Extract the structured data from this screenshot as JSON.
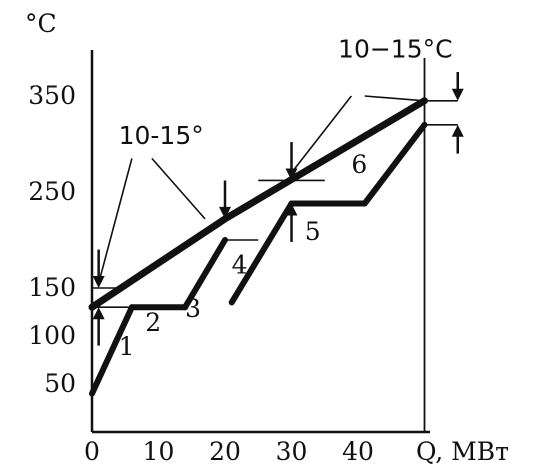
{
  "chart_data": {
    "type": "line",
    "y_unit_label": "°C",
    "x_axis_label": "Q, МВт",
    "x_ticks": [
      "0",
      "10",
      "20",
      "30",
      "40"
    ],
    "x_tick_values": [
      0,
      10,
      20,
      30,
      40
    ],
    "y_ticks": [
      "50",
      "100",
      "150",
      "250",
      "350"
    ],
    "y_tick_values": [
      50,
      100,
      150,
      250,
      350
    ],
    "xlim": [
      0,
      48
    ],
    "ylim": [
      0,
      380
    ],
    "line_color": "#111111",
    "hot_composite": [
      [
        0,
        130
      ],
      [
        20,
        222
      ],
      [
        50,
        345
      ]
    ],
    "series": [
      {
        "name": "1",
        "points": [
          [
            0,
            40
          ],
          [
            6,
            130
          ]
        ]
      },
      {
        "name": "2",
        "points": [
          [
            6,
            130
          ],
          [
            14,
            130
          ]
        ]
      },
      {
        "name": "3",
        "points": [
          [
            14,
            130
          ],
          [
            20,
            200
          ]
        ]
      },
      {
        "name": "4",
        "points": [
          [
            21,
            135
          ],
          [
            30,
            238
          ]
        ]
      },
      {
        "name": "5",
        "points": [
          [
            30,
            238
          ],
          [
            41,
            238
          ]
        ]
      },
      {
        "name": "6",
        "points": [
          [
            41,
            238
          ],
          [
            50,
            320
          ]
        ]
      }
    ],
    "pinch_thin_lines": [
      [
        [
          0,
          150
        ],
        [
          5,
          150
        ]
      ],
      [
        [
          0,
          130
        ],
        [
          8,
          130
        ]
      ],
      [
        [
          20,
          200
        ],
        [
          25,
          200
        ]
      ],
      [
        [
          25,
          262
        ],
        [
          35,
          262
        ]
      ],
      [
        [
          50,
          345
        ],
        [
          55,
          345
        ]
      ],
      [
        [
          50,
          320
        ],
        [
          55,
          320
        ]
      ]
    ],
    "vertical_lines": [
      {
        "x": 50,
        "y_from": 0,
        "y_to": 380
      }
    ],
    "arrows": [
      {
        "x": 1,
        "tip_y": 150,
        "tail_y": 190
      },
      {
        "x": 1,
        "tip_y": 130,
        "tail_y": 90
      },
      {
        "x": 20,
        "tip_y": 222,
        "tail_y": 262
      },
      {
        "x": 30,
        "tip_y": 262,
        "tail_y": 302
      },
      {
        "x": 30,
        "tip_y": 238,
        "tail_y": 198
      },
      {
        "x": 55,
        "tip_y": 345,
        "tail_y": 375
      },
      {
        "x": 55,
        "tip_y": 320,
        "tail_y": 290
      }
    ],
    "annotations": [
      {
        "text": "10-15°",
        "pos": [
          4,
          300
        ],
        "leaders": [
          [
            [
              6,
              285
            ],
            [
              1,
              155
            ]
          ],
          [
            [
              9,
              285
            ],
            [
              17,
              222
            ]
          ]
        ]
      },
      {
        "text": "10−15°C",
        "pos": [
          37,
          390
        ],
        "leaders": [
          [
            [
              39,
              350
            ],
            [
              30,
              270
            ]
          ],
          [
            [
              41,
              350
            ],
            [
              50,
              345
            ]
          ]
        ]
      }
    ],
    "series_label_positions": {
      "1": [
        4,
        80
      ],
      "2": [
        8,
        105
      ],
      "3": [
        14,
        120
      ],
      "4": [
        21,
        165
      ],
      "5": [
        32,
        200
      ],
      "6": [
        39,
        270
      ]
    }
  }
}
